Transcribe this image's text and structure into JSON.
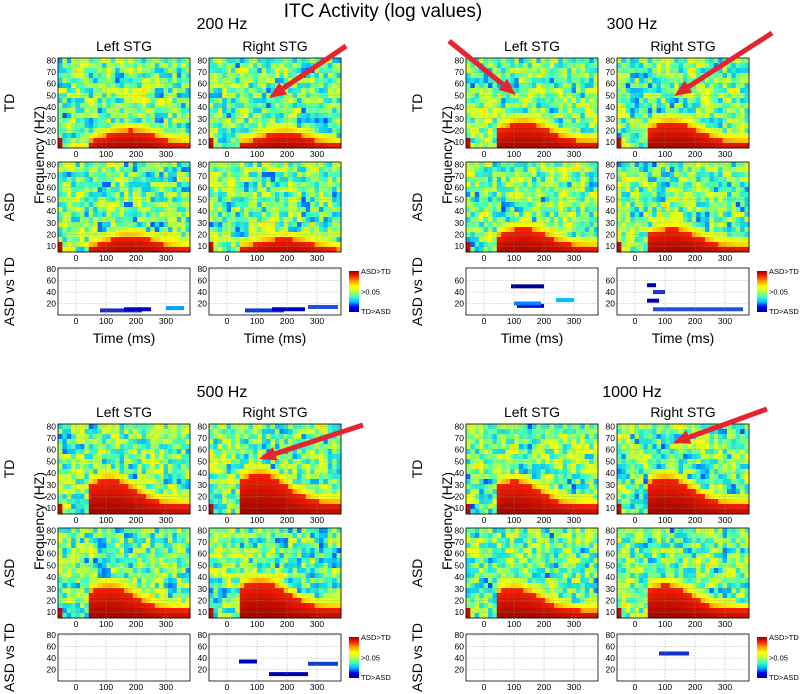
{
  "title": "ITC Activity (log values)",
  "colors": {
    "arrow": "#e8222e",
    "grid": "#7a9a7a",
    "axis": "#000000",
    "colormap": [
      "#00008f",
      "#0000ff",
      "#00bfff",
      "#40ffbf",
      "#bfff40",
      "#ffff00",
      "#ff9f00",
      "#ff2000",
      "#8f0000"
    ]
  },
  "labels": {
    "left_stg": "Left STG",
    "right_stg": "Right STG",
    "row_td": "TD",
    "row_asd": "ASD",
    "row_diff": "ASD vs TD",
    "ylabel": "Frequency (HZ)",
    "xlabel": "Time (ms)"
  },
  "colorbar": {
    "top": "ASD>TD",
    "mid": ">0.05",
    "bottom": "TD>ASD"
  },
  "chart_data": [
    {
      "type": "heatmap",
      "title": "200 Hz",
      "x_ticks": [
        0,
        100,
        200,
        300
      ],
      "y_ticks": [
        10,
        20,
        30,
        40,
        50,
        60,
        70,
        80
      ],
      "diff_y_ticks": [
        20,
        40,
        60,
        80
      ],
      "x_range": [
        -60,
        380
      ],
      "y_range": [
        5,
        82
      ],
      "response": {
        "left": {
          "peak_ms": 180,
          "height_hz": 20
        },
        "right": {
          "peak_ms": 190,
          "height_hz": 18
        }
      },
      "annotation": "arrow pointing to Right STG TD at ~150 ms, 55 Hz",
      "significance": {
        "left": [
          [
            80,
            220,
            8,
            "#2030c0"
          ],
          [
            160,
            250,
            10,
            "#0000c0"
          ],
          [
            300,
            360,
            12,
            "#00a0ff"
          ]
        ],
        "right": [
          [
            60,
            190,
            8,
            "#1040d0"
          ],
          [
            150,
            260,
            10,
            "#0000c0"
          ],
          [
            270,
            370,
            14,
            "#2050e0"
          ]
        ]
      }
    },
    {
      "type": "heatmap",
      "title": "300 Hz",
      "x_ticks": [
        0,
        100,
        200,
        300
      ],
      "y_ticks": [
        10,
        20,
        30,
        40,
        50,
        60,
        70,
        80
      ],
      "diff_y_ticks": [
        20,
        40,
        60
      ],
      "x_range": [
        -60,
        380
      ],
      "y_range": [
        5,
        82
      ],
      "response": {
        "left": {
          "peak_ms": 130,
          "height_hz": 27
        },
        "right": {
          "peak_ms": 120,
          "height_hz": 27
        }
      },
      "annotation": "arrows pointing to Left STG and Right STG TD at ~100 ms, 45 Hz",
      "significance": {
        "left": [
          [
            90,
            200,
            50,
            "#00008f"
          ],
          [
            110,
            200,
            16,
            "#0000c0"
          ],
          [
            100,
            190,
            20,
            "#0080ff"
          ],
          [
            240,
            300,
            26,
            "#00c0ff"
          ]
        ],
        "right": [
          [
            40,
            70,
            52,
            "#0000c0"
          ],
          [
            40,
            80,
            25,
            "#0000c0"
          ],
          [
            60,
            100,
            40,
            "#1030d0"
          ],
          [
            60,
            360,
            10,
            "#2050e0"
          ]
        ]
      }
    },
    {
      "type": "heatmap",
      "title": "500 Hz",
      "x_ticks": [
        0,
        100,
        200,
        300
      ],
      "y_ticks": [
        10,
        20,
        30,
        40,
        50,
        60,
        70,
        80
      ],
      "diff_y_ticks": [
        20,
        40,
        60,
        80
      ],
      "x_range": [
        -60,
        380
      ],
      "y_range": [
        5,
        82
      ],
      "response": {
        "left": {
          "peak_ms": 110,
          "height_hz": 35
        },
        "right": {
          "peak_ms": 110,
          "height_hz": 40
        }
      },
      "annotation": "arrow pointing to Right STG TD at ~110 ms, 40 Hz",
      "significance": {
        "left": [],
        "right": [
          [
            40,
            100,
            34,
            "#0000c0"
          ],
          [
            140,
            270,
            12,
            "#0000b0"
          ],
          [
            270,
            370,
            30,
            "#1040d0"
          ]
        ]
      }
    },
    {
      "type": "heatmap",
      "title": "1000 Hz",
      "x_ticks": [
        0,
        100,
        200,
        300
      ],
      "y_ticks": [
        10,
        20,
        30,
        40,
        50,
        60,
        70,
        80
      ],
      "diff_y_ticks": [
        20,
        40,
        60,
        80
      ],
      "x_range": [
        -60,
        380
      ],
      "y_range": [
        5,
        82
      ],
      "response": {
        "left": {
          "peak_ms": 100,
          "height_hz": 33
        },
        "right": {
          "peak_ms": 100,
          "height_hz": 36
        }
      },
      "annotation": "arrow pointing to Right STG TD at ~110 ms, 45 Hz",
      "significance": {
        "left": [],
        "right": [
          [
            80,
            180,
            48,
            "#1030d0"
          ]
        ]
      }
    }
  ]
}
